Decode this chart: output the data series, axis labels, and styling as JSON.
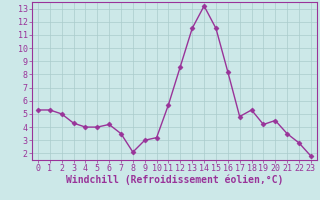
{
  "x": [
    0,
    1,
    2,
    3,
    4,
    5,
    6,
    7,
    8,
    9,
    10,
    11,
    12,
    13,
    14,
    15,
    16,
    17,
    18,
    19,
    20,
    21,
    22,
    23
  ],
  "y": [
    5.3,
    5.3,
    5.0,
    4.3,
    4.0,
    4.0,
    4.2,
    3.5,
    2.1,
    3.0,
    3.2,
    5.7,
    8.6,
    11.5,
    13.2,
    11.5,
    8.2,
    4.8,
    5.3,
    4.2,
    4.5,
    3.5,
    2.8,
    1.8
  ],
  "line_color": "#993399",
  "marker": "D",
  "marker_size": 2.5,
  "linewidth": 1.0,
  "xlabel": "Windchill (Refroidissement éolien,°C)",
  "xlabel_fontsize": 7,
  "xlim": [
    -0.5,
    23.5
  ],
  "ylim": [
    1.5,
    13.5
  ],
  "yticks": [
    2,
    3,
    4,
    5,
    6,
    7,
    8,
    9,
    10,
    11,
    12,
    13
  ],
  "xticks": [
    0,
    1,
    2,
    3,
    4,
    5,
    6,
    7,
    8,
    9,
    10,
    11,
    12,
    13,
    14,
    15,
    16,
    17,
    18,
    19,
    20,
    21,
    22,
    23
  ],
  "background_color": "#cce8e8",
  "grid_color": "#aacccc",
  "line_purple": "#993399",
  "tick_fontsize": 6,
  "spine_color": "#993399",
  "fig_width": 3.2,
  "fig_height": 2.0,
  "dpi": 100
}
